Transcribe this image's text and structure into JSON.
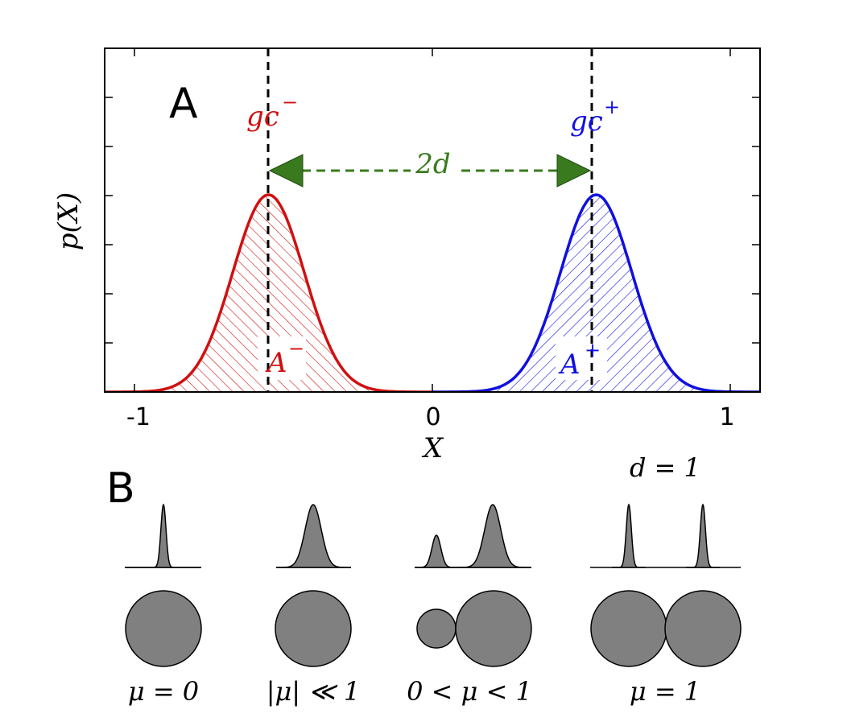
{
  "colors": {
    "red": "#d01010",
    "blue": "#1010e0",
    "green": "#3a7a1e",
    "gray": "#808080",
    "black": "#000000"
  },
  "panel_a": {
    "label": "A",
    "ylabel": "p(X)",
    "xlabel": "X",
    "xticks": [
      "-1",
      "0",
      "1"
    ],
    "gc_minus": "gc",
    "gc_minus_sup": "−",
    "gc_plus": "gc",
    "gc_plus_sup": "+",
    "distance": "2d",
    "area_minus": "A",
    "area_minus_sup": "−",
    "area_plus": "A",
    "area_plus_sup": "+"
  },
  "panel_b": {
    "label": "B",
    "d_label": "d = 1",
    "cases": [
      {
        "label": "μ = 0"
      },
      {
        "label": "|μ| ≪ 1"
      },
      {
        "label": "0 < μ < 1"
      },
      {
        "label": "μ = 1"
      }
    ]
  },
  "chart_data": {
    "type": "line",
    "title": "",
    "xlabel": "X",
    "ylabel": "p(X)",
    "xlim": [
      -1.1,
      1.1
    ],
    "series": [
      {
        "name": "A−",
        "center": -0.55,
        "sigma": 0.12,
        "color": "red"
      },
      {
        "name": "A+",
        "center": 0.55,
        "sigma": 0.12,
        "color": "blue"
      }
    ],
    "markers": [
      {
        "name": "gc−",
        "x": -0.55
      },
      {
        "name": "gc+",
        "x": 0.55
      }
    ],
    "separation": "2d"
  }
}
